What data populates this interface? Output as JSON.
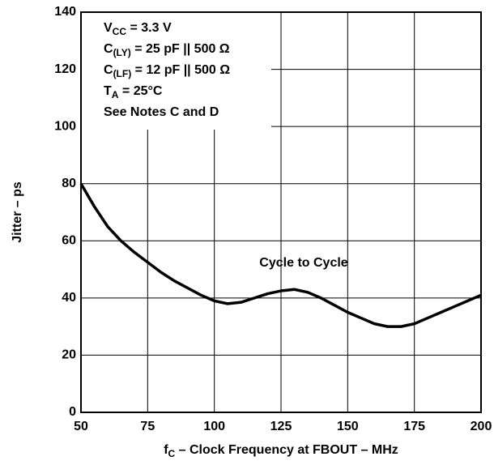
{
  "chart_data": {
    "type": "line",
    "x_label": {
      "text": "f",
      "sub": "C",
      "rest": " – Clock Frequency at FBOUT – MHz"
    },
    "y_label": "Jitter – ps",
    "annotations": [
      {
        "text": "V",
        "sub": "CC",
        "rest": " = 3.3 V"
      },
      {
        "text": "C",
        "sub": "(LY)",
        "rest": " = 25 pF || 500 Ω"
      },
      {
        "text": "C",
        "sub": "(LF)",
        "rest": " = 12 pF || 500 Ω"
      },
      {
        "text": "T",
        "sub": "A",
        "rest": " = 25°C"
      },
      {
        "text": "See Notes C and D"
      }
    ],
    "grid": true,
    "xlim": [
      50,
      200
    ],
    "xticks": [
      50,
      75,
      100,
      125,
      150,
      175,
      200
    ],
    "ylim": [
      0,
      140
    ],
    "yticks": [
      0,
      20,
      40,
      60,
      80,
      100,
      120,
      140
    ],
    "x": [
      50,
      55,
      60,
      65,
      70,
      75,
      80,
      85,
      90,
      95,
      100,
      105,
      110,
      115,
      120,
      125,
      130,
      135,
      140,
      145,
      150,
      155,
      160,
      165,
      170,
      175,
      180,
      185,
      190,
      195,
      200
    ],
    "series": [
      {
        "name": "Cycle to Cycle",
        "color": "#000000",
        "values": [
          80,
          72,
          65,
          60,
          56,
          52.5,
          49,
          46,
          43.5,
          41,
          39,
          38,
          38.5,
          40,
          41.5,
          42.5,
          43,
          42,
          40,
          37.5,
          35,
          33,
          31,
          30,
          30,
          31,
          33,
          35,
          37,
          39,
          41
        ]
      }
    ]
  }
}
